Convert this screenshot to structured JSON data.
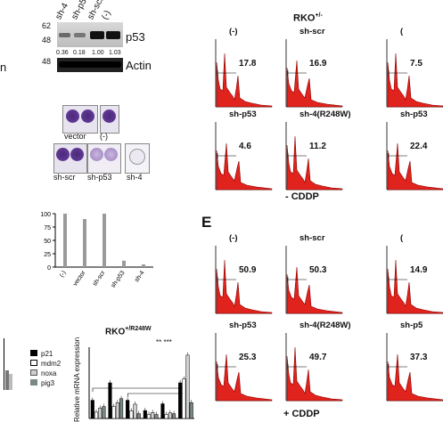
{
  "blot": {
    "lanes": [
      "sh-4",
      "sh-p53",
      "sh-scr",
      "(-)"
    ],
    "mw_top": [
      "62",
      "48"
    ],
    "mw_bottom": "48",
    "target_label": "p53",
    "quant": [
      "0.36",
      "0.18",
      "1.00",
      "1.03"
    ],
    "control_label": "Actin",
    "cut_left_text": "n"
  },
  "colony": {
    "top_labels": [
      "vector",
      "(-)"
    ],
    "bottom_labels": [
      "sh-scr",
      "sh-p53",
      "sh-4"
    ]
  },
  "bar_chart": {
    "yticks": [
      "100",
      "75",
      "50",
      "25",
      "0"
    ],
    "categories": [
      "(-)",
      "vector",
      "sh-scr",
      "sh-p53",
      "sh-4"
    ]
  },
  "bottom_chart": {
    "title": "RKO",
    "title_sup": "+/R248W",
    "ylabel": "Relative mRNA expression",
    "legend": [
      "p21",
      "mdm2",
      "noxa",
      "pig3"
    ],
    "sig": "** ***"
  },
  "rko_panel": {
    "title": "RKO",
    "title_sup": "+/-",
    "labels_top": [
      "(-)",
      "sh-scr",
      "("
    ],
    "values_top": [
      "17.8",
      "16.9",
      "7.5"
    ],
    "labels_mid": [
      "sh-p53",
      "sh-4(R248W)",
      "sh-p53"
    ],
    "values_mid": [
      "4.6",
      "11.2",
      "22.4"
    ],
    "condition": "- CDDP"
  },
  "e_panel": {
    "letter": "E",
    "labels_top": [
      "(-)",
      "sh-scr",
      "("
    ],
    "values_top": [
      "50.9",
      "50.3",
      "14.9"
    ],
    "labels_bot": [
      "sh-p53",
      "sh-4(R248W)",
      "sh-p5"
    ],
    "values_bot": [
      "25.3",
      "49.7",
      "37.3"
    ],
    "condition": "+ CDDP"
  },
  "chart_data": [
    {
      "type": "bar",
      "categories": [
        "(-)",
        "vector",
        "sh-scr",
        "sh-p53",
        "sh-4"
      ],
      "values": [
        100,
        90,
        100,
        12,
        5
      ],
      "ylim": [
        0,
        100
      ],
      "title": "",
      "xlabel": "",
      "ylabel": ""
    },
    {
      "type": "bar",
      "title": "RKO +/R248W",
      "ylabel": "Relative mRNA expression",
      "series_names": [
        "p21",
        "mdm2",
        "noxa",
        "pig3"
      ],
      "groups": [
        [
          4.6,
          1.6,
          2.6,
          3.0
        ],
        [
          9.0,
          3.0,
          4.0,
          5.0
        ],
        [
          4.6,
          1.9,
          3.6,
          1.2
        ],
        [
          2.0,
          1.0,
          1.5,
          1.0
        ],
        [
          3.7,
          1.0,
          1.4,
          1.2
        ],
        [
          9.0,
          10.0,
          16.0,
          4.0
        ]
      ]
    }
  ]
}
